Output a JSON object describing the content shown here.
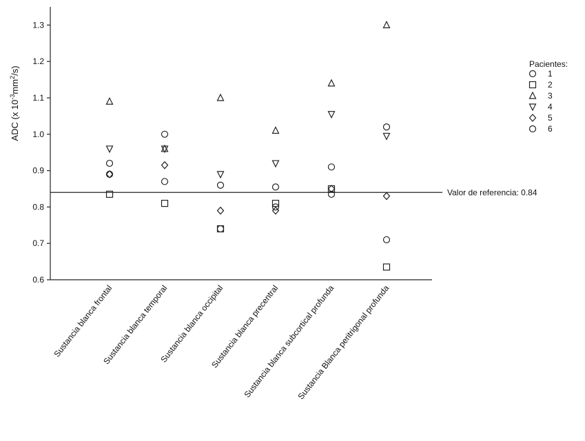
{
  "chart_data": {
    "type": "scatter",
    "ylabel_parts": [
      "ADC (x 10",
      "-3",
      "mm",
      "2",
      "/s)"
    ],
    "ylim": [
      0.6,
      1.35
    ],
    "yticks": [
      "0.6",
      "0.7",
      "0.8",
      "0.9",
      "1.0",
      "1.1",
      "1.2",
      "1.3"
    ],
    "categories": [
      "Sustancia blanca frontal",
      "Sustancia blanca temporal",
      "Sustancia blanca occipital",
      "Sustancia blanca precentral",
      "Sustancia blanca subcortical profunda",
      "Sustancia Blanca peritrigonal profunda"
    ],
    "legend_title": "Pacientes:",
    "reference": {
      "value": 0.84,
      "label": "Valor de referencia: 0.84"
    },
    "series": [
      {
        "name": "1",
        "marker": "circle",
        "values": [
          0.89,
          0.87,
          0.86,
          0.855,
          0.835,
          1.02
        ]
      },
      {
        "name": "2",
        "marker": "square",
        "values": [
          0.835,
          0.81,
          0.74,
          0.81,
          0.85,
          0.635
        ]
      },
      {
        "name": "3",
        "marker": "triangle",
        "values": [
          1.09,
          0.96,
          1.1,
          1.01,
          1.14,
          1.3
        ]
      },
      {
        "name": "4",
        "marker": "triangle-down",
        "values": [
          0.96,
          0.96,
          0.89,
          0.92,
          1.055,
          0.995
        ]
      },
      {
        "name": "5",
        "marker": "diamond",
        "values": [
          0.89,
          0.915,
          0.79,
          0.79,
          0.85,
          0.83
        ]
      },
      {
        "name": "6",
        "marker": "circle",
        "values": [
          0.92,
          1.0,
          0.74,
          0.8,
          0.91,
          0.71
        ]
      }
    ],
    "grid": false,
    "legend_position": "right"
  }
}
